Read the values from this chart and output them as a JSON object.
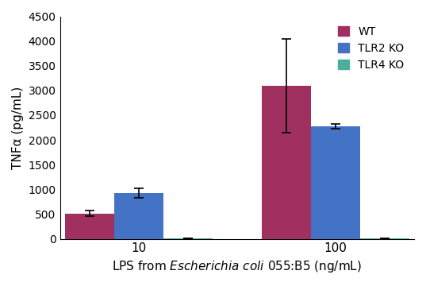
{
  "groups": [
    "10",
    "100"
  ],
  "series": [
    {
      "label": "WT",
      "color": "#a03060",
      "values": [
        510,
        3100
      ],
      "errors": [
        55,
        950
      ]
    },
    {
      "label": "TLR2 KO",
      "color": "#4472c4",
      "values": [
        920,
        2270
      ],
      "errors": [
        95,
        50
      ]
    },
    {
      "label": "TLR4 KO",
      "color": "#4eae9e",
      "values": [
        5,
        5
      ],
      "errors": [
        0,
        0
      ]
    }
  ],
  "ylabel": "TNFα (pg/mL)",
  "xlabel": "LPS from $\\it{Escherichia\\ coli}$ 055:B5 (ng/mL)",
  "ylim": [
    0,
    4500
  ],
  "yticks": [
    0,
    500,
    1000,
    1500,
    2000,
    2500,
    3000,
    3500,
    4000,
    4500
  ],
  "bar_width": 0.25,
  "group_positions": [
    1.0,
    2.0
  ],
  "background_color": "#ffffff",
  "legend_loc": "upper right",
  "capsize": 4
}
